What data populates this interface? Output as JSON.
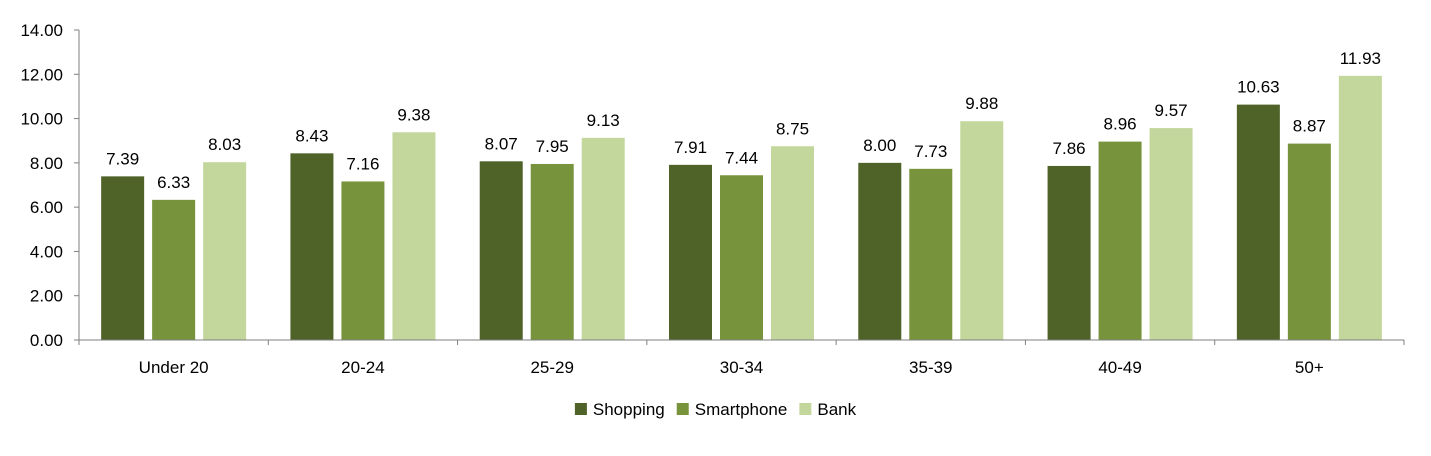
{
  "chart_data": {
    "type": "bar",
    "title": "",
    "xlabel": "",
    "ylabel": "",
    "ylim": [
      0,
      14
    ],
    "ytick_step": 2,
    "ytick_labels": [
      "0.00",
      "2.00",
      "4.00",
      "6.00",
      "8.00",
      "10.00",
      "12.00",
      "14.00"
    ],
    "grid": false,
    "legend_position": "bottom",
    "categories": [
      "Under 20",
      "20-24",
      "25-29",
      "30-34",
      "35-39",
      "40-49",
      "50+"
    ],
    "series": [
      {
        "name": "Shopping",
        "color": "#4f6228",
        "values": [
          7.39,
          8.43,
          8.07,
          7.91,
          8.0,
          7.86,
          10.63
        ],
        "labels": [
          "7.39",
          "8.43",
          "8.07",
          "7.91",
          "8.00",
          "7.86",
          "10.63"
        ]
      },
      {
        "name": "Smartphone",
        "color": "#77933c",
        "values": [
          6.33,
          7.16,
          7.95,
          7.44,
          7.73,
          8.96,
          8.87
        ],
        "labels": [
          "6.33",
          "7.16",
          "7.95",
          "7.44",
          "7.73",
          "8.96",
          "8.87"
        ]
      },
      {
        "name": "Bank",
        "color": "#c3d69b",
        "values": [
          8.03,
          9.38,
          9.13,
          8.75,
          9.88,
          9.57,
          11.93
        ],
        "labels": [
          "8.03",
          "9.38",
          "9.13",
          "8.75",
          "9.88",
          "9.57",
          "11.93"
        ]
      }
    ]
  }
}
